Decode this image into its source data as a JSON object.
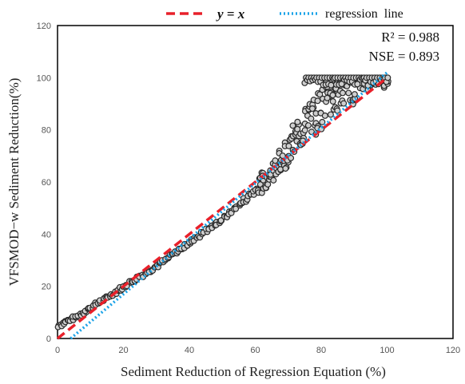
{
  "chart_data": {
    "type": "scatter",
    "xlabel": "Sediment Reduction of Regression Equation (%)",
    "ylabel": "VFSMOD−w Sediment Reduction(%)",
    "xlim": [
      0,
      120
    ],
    "ylim": [
      0,
      120
    ],
    "xticks": [
      "0",
      "20",
      "40",
      "60",
      "80",
      "100",
      "120"
    ],
    "yticks": [
      "0",
      "20",
      "40",
      "60",
      "80",
      "100",
      "120"
    ],
    "grid": false,
    "legend_position": "top",
    "legend": [
      {
        "label": "y = x",
        "style": "dashed",
        "color": "#e8202a"
      },
      {
        "label": "regression  line",
        "style": "dotted",
        "color": "#1aa3e8"
      }
    ],
    "annotations": [
      "R² = 0.988",
      "NSE = 0.893"
    ],
    "series": [
      {
        "marker": "circle",
        "color": "#333333",
        "curve": [
          [
            0,
            5
          ],
          [
            5,
            8
          ],
          [
            10,
            12
          ],
          [
            20,
            20
          ],
          [
            30,
            28
          ],
          [
            40,
            37
          ],
          [
            50,
            46
          ],
          [
            60,
            57
          ],
          [
            65,
            63
          ],
          [
            70,
            72
          ],
          [
            75,
            81
          ],
          [
            80,
            89
          ],
          [
            85,
            95
          ],
          [
            90,
            98
          ],
          [
            95,
            99
          ],
          [
            100,
            99
          ]
        ]
      }
    ],
    "reference_line": {
      "name": "y = x",
      "x": [
        0,
        100
      ],
      "y": [
        0,
        100
      ]
    },
    "regression_line": {
      "name": "regression line",
      "x": [
        4,
        100
      ],
      "y": [
        0,
        102
      ]
    }
  }
}
